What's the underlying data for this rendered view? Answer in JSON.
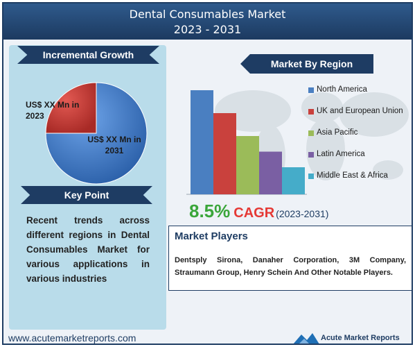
{
  "header": {
    "title": "Dental Consumables Market",
    "period": "2023 - 2031"
  },
  "incremental_growth": {
    "label": "Incremental Growth",
    "slice_2023": "US$ XX Mn in 2023",
    "slice_2031": "US$ XX Mn in 2031"
  },
  "key_point": {
    "label": "Key Point",
    "text": "Recent trends across different regions in Dental Consumables Market for various applications in various industries"
  },
  "region": {
    "label": "Market By Region"
  },
  "cagr": {
    "value": "8.5%",
    "label": "CAGR",
    "period": "(2023-2031)"
  },
  "players": {
    "title": "Market Players",
    "text": "Dentsply Sirona, Danaher Corporation, 3M Company, Straumann Group, Henry Schein And Other Notable Players."
  },
  "footer": {
    "url": "www.acutemarketreports.com",
    "brand": "Acute Market Reports"
  },
  "colors": {
    "north_america": "#4a7fc1",
    "uk_eu": "#c9413d",
    "asia_pacific": "#9bbb59",
    "latin_america": "#7a5fa3",
    "mea": "#45acc9",
    "pie_2031": "#3f7fd0",
    "pie_2023": "#d43a35"
  },
  "chart_data": [
    {
      "type": "pie",
      "labels": [
        "US$ XX Mn in 2023",
        "US$ XX Mn in 2031"
      ],
      "values": [
        25,
        75
      ],
      "colors": [
        "#d43a35",
        "#3f7fd0"
      ]
    },
    {
      "type": "bar",
      "categories": [
        "North America",
        "UK and European Union",
        "Asia Pacific",
        "Latin America",
        "Middle East & Africa"
      ],
      "values": [
        100,
        78,
        56,
        41,
        26
      ],
      "colors": [
        "#4a7fc1",
        "#c9413d",
        "#9bbb59",
        "#7a5fa3",
        "#45acc9"
      ],
      "ylim": [
        0,
        100
      ],
      "legend_position": "right"
    }
  ]
}
